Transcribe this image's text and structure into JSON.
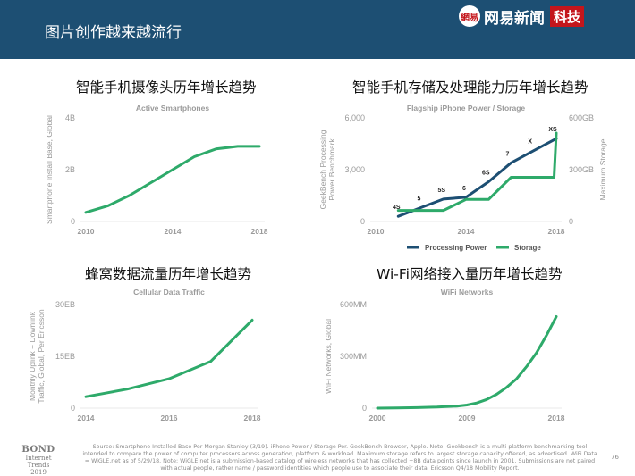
{
  "header": {
    "title": "图片创作越来越流行",
    "logo_mark": "網易",
    "logo_text": "网易新闻",
    "logo_tag": "科技"
  },
  "colors": {
    "header_bg": "#1d4f73",
    "green": "#2eaa6a",
    "navy": "#1d4f73",
    "axis_text": "#9a9a9a"
  },
  "chart_data": [
    {
      "type": "line",
      "panel_title": "智能手机摄像头历年增长趋势",
      "title": "Active Smartphones",
      "ylabel": "Smartphone Install Base, Global",
      "xlabel": "",
      "xticks": [
        "2010",
        "2014",
        "2018"
      ],
      "yticks": [
        "0",
        "2B",
        "4B"
      ],
      "xlim": [
        2010,
        2018
      ],
      "ylim": [
        0,
        4
      ],
      "series": [
        {
          "color": "#2eaa6a",
          "x": [
            2010,
            2011,
            2012,
            2013,
            2014,
            2015,
            2016,
            2017,
            2018
          ],
          "y": [
            0.35,
            0.6,
            1.0,
            1.5,
            2.0,
            2.5,
            2.8,
            2.9,
            2.9
          ]
        }
      ]
    },
    {
      "type": "line",
      "panel_title": "智能手机存储及处理能力历年增长趋势",
      "title": "Flagship iPhone Power / Storage",
      "ylabel": "GeekBench Processing Power Benchmark",
      "y2label": "Maximum Storage",
      "xticks": [
        "2010",
        "2014",
        "2018"
      ],
      "yticks": [
        "0",
        "3,000",
        "6,000"
      ],
      "y2ticks": [
        "0",
        "300GB",
        "600GB"
      ],
      "xlim": [
        2010,
        2018
      ],
      "ylim": [
        0,
        6000
      ],
      "y2lim": [
        0,
        600
      ],
      "legend": "bottom",
      "annotations": [
        "4S",
        "5",
        "5S",
        "6",
        "6S",
        "7",
        "X",
        "XS"
      ],
      "series": [
        {
          "name": "Processing Power",
          "color": "#1d4f73",
          "axis": "left",
          "x": [
            2011,
            2012,
            2013,
            2014,
            2015,
            2016,
            2017,
            2018
          ],
          "y": [
            300,
            800,
            1300,
            1400,
            2300,
            3400,
            4100,
            4800
          ]
        },
        {
          "name": "Storage",
          "color": "#2eaa6a",
          "axis": "right",
          "x": [
            2011,
            2012,
            2013,
            2014,
            2015,
            2016,
            2017,
            2017.9,
            2018
          ],
          "y": [
            64,
            64,
            64,
            128,
            128,
            256,
            256,
            256,
            512
          ]
        }
      ]
    },
    {
      "type": "line",
      "panel_title": "蜂窝数据流量历年增长趋势",
      "title": "Cellular Data Traffic",
      "ylabel": "Monthly Uplink + Downlink Traffic, Global, Per Ericsson",
      "xticks": [
        "2014",
        "2016",
        "2018"
      ],
      "yticks": [
        "0",
        "15EB",
        "30EB"
      ],
      "xlim": [
        2014,
        2018
      ],
      "ylim": [
        0,
        30
      ],
      "series": [
        {
          "color": "#2eaa6a",
          "x": [
            2014,
            2015,
            2016,
            2017,
            2018
          ],
          "y": [
            3.3,
            5.5,
            8.5,
            13.5,
            25.5
          ]
        }
      ]
    },
    {
      "type": "line",
      "panel_title": "Wi-Fi网络接入量历年增长趋势",
      "title": "WiFi Networks",
      "ylabel": "WiFi Networks, Global",
      "xticks": [
        "2000",
        "2009",
        "2018"
      ],
      "yticks": [
        "0",
        "300MM",
        "600MM"
      ],
      "xlim": [
        2000,
        2018
      ],
      "ylim": [
        0,
        600
      ],
      "series": [
        {
          "color": "#2eaa6a",
          "x": [
            2000,
            2002,
            2004,
            2006,
            2008,
            2009,
            2010,
            2011,
            2012,
            2013,
            2014,
            2015,
            2016,
            2017,
            2018
          ],
          "y": [
            0,
            1,
            3,
            6,
            12,
            18,
            30,
            50,
            80,
            120,
            170,
            240,
            320,
            420,
            530
          ]
        }
      ]
    }
  ],
  "footer": {
    "source": "Source: Smartphone Installed Base Per Morgan Stanley (3/19). iPhone Power / Storage Per. GeekBench Browser, Apple. Note: Geekbench is a multi-platform benchmarking tool intended to compare the power of computer processors across generation, platform & workload. Maximum storage refers to largest storage capacity offered, as advertised. WiFi Data = WiGLE.net as of 5/29/18. Note: WiGLE.net is a submission-based catalog of wireless networks that has collected +8B data points since launch in 2001. Submissions are not paired with actual people, rather name / password identities which people use to associate their data. Ericsson Q4/18 Mobility Report.",
    "bond_title": "BOND",
    "bond_sub1": "Internet Trends",
    "bond_sub2": "2019",
    "page_number": "76"
  }
}
